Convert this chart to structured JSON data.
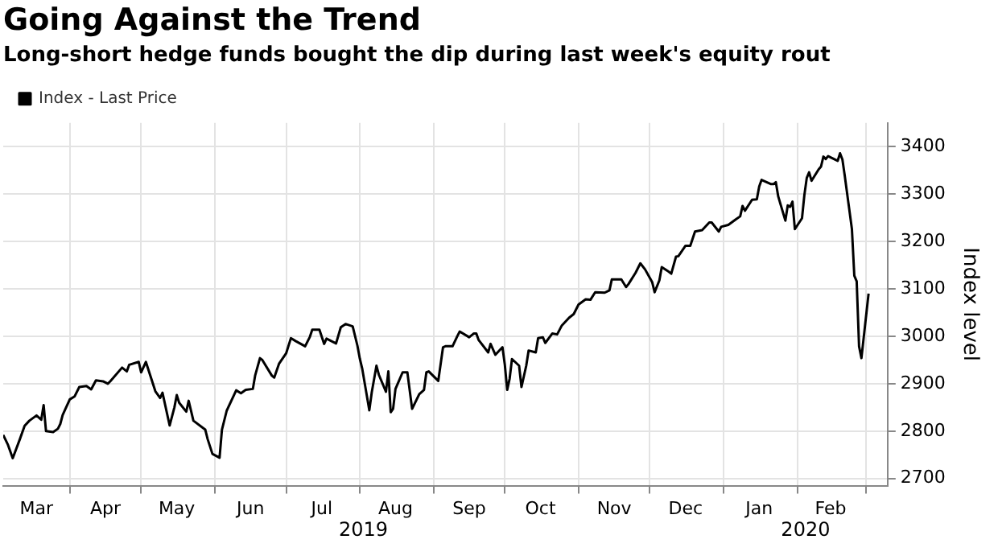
{
  "chart_data": {
    "type": "line",
    "title": "Going Against the Trend",
    "subtitle": "Long-short hedge funds bought the dip during last week's equity rout",
    "ylabel": "Index level",
    "x": [
      "2019-03-04",
      "2019-03-06",
      "2019-03-08",
      "2019-03-11",
      "2019-03-13",
      "2019-03-15",
      "2019-03-18",
      "2019-03-20",
      "2019-03-21",
      "2019-03-22",
      "2019-03-25",
      "2019-03-27",
      "2019-03-28",
      "2019-03-29",
      "2019-04-01",
      "2019-04-03",
      "2019-04-05",
      "2019-04-08",
      "2019-04-10",
      "2019-04-12",
      "2019-04-15",
      "2019-04-17",
      "2019-04-18",
      "2019-04-23",
      "2019-04-25",
      "2019-04-26",
      "2019-04-30",
      "2019-05-01",
      "2019-05-03",
      "2019-05-07",
      "2019-05-09",
      "2019-05-10",
      "2019-05-13",
      "2019-05-15",
      "2019-05-16",
      "2019-05-17",
      "2019-05-20",
      "2019-05-21",
      "2019-05-23",
      "2019-05-28",
      "2019-05-29",
      "2019-05-31",
      "2019-06-03",
      "2019-06-04",
      "2019-06-06",
      "2019-06-10",
      "2019-06-12",
      "2019-06-14",
      "2019-06-17",
      "2019-06-18",
      "2019-06-20",
      "2019-06-21",
      "2019-06-25",
      "2019-06-26",
      "2019-06-28",
      "2019-07-01",
      "2019-07-03",
      "2019-07-05",
      "2019-07-09",
      "2019-07-11",
      "2019-07-12",
      "2019-07-15",
      "2019-07-17",
      "2019-07-18",
      "2019-07-22",
      "2019-07-24",
      "2019-07-26",
      "2019-07-29",
      "2019-07-31",
      "2019-08-01",
      "2019-08-02",
      "2019-08-05",
      "2019-08-06",
      "2019-08-08",
      "2019-08-09",
      "2019-08-12",
      "2019-08-13",
      "2019-08-14",
      "2019-08-15",
      "2019-08-16",
      "2019-08-19",
      "2019-08-21",
      "2019-08-23",
      "2019-08-26",
      "2019-08-28",
      "2019-08-29",
      "2019-08-30",
      "2019-09-03",
      "2019-09-05",
      "2019-09-06",
      "2019-09-09",
      "2019-09-11",
      "2019-09-12",
      "2019-09-16",
      "2019-09-18",
      "2019-09-19",
      "2019-09-20",
      "2019-09-24",
      "2019-09-25",
      "2019-09-27",
      "2019-09-30",
      "2019-10-01",
      "2019-10-02",
      "2019-10-03",
      "2019-10-04",
      "2019-10-07",
      "2019-10-08",
      "2019-10-10",
      "2019-10-11",
      "2019-10-14",
      "2019-10-15",
      "2019-10-17",
      "2019-10-18",
      "2019-10-21",
      "2019-10-23",
      "2019-10-25",
      "2019-10-28",
      "2019-10-30",
      "2019-11-01",
      "2019-11-04",
      "2019-11-06",
      "2019-11-08",
      "2019-11-12",
      "2019-11-14",
      "2019-11-15",
      "2019-11-19",
      "2019-11-21",
      "2019-11-22",
      "2019-11-25",
      "2019-11-27",
      "2019-11-29",
      "2019-12-02",
      "2019-12-03",
      "2019-12-05",
      "2019-12-06",
      "2019-12-09",
      "2019-12-10",
      "2019-12-12",
      "2019-12-13",
      "2019-12-16",
      "2019-12-18",
      "2019-12-20",
      "2019-12-23",
      "2019-12-26",
      "2019-12-27",
      "2019-12-30",
      "2019-12-31",
      "2020-01-03",
      "2020-01-06",
      "2020-01-08",
      "2020-01-09",
      "2020-01-10",
      "2020-01-13",
      "2020-01-15",
      "2020-01-16",
      "2020-01-17",
      "2020-01-21",
      "2020-01-22",
      "2020-01-23",
      "2020-01-24",
      "2020-01-27",
      "2020-01-28",
      "2020-01-29",
      "2020-01-30",
      "2020-01-31",
      "2020-02-03",
      "2020-02-04",
      "2020-02-05",
      "2020-02-06",
      "2020-02-07",
      "2020-02-10",
      "2020-02-11",
      "2020-02-12",
      "2020-02-13",
      "2020-02-14",
      "2020-02-18",
      "2020-02-19",
      "2020-02-20",
      "2020-02-21",
      "2020-02-24",
      "2020-02-25",
      "2020-02-26",
      "2020-02-27",
      "2020-02-28",
      "2020-03-02"
    ],
    "series": [
      {
        "name": "Index - Last Price",
        "color": "#000000",
        "values": [
          2792,
          2771,
          2743,
          2783,
          2811,
          2822,
          2833,
          2824,
          2855,
          2800,
          2798,
          2805,
          2815,
          2834,
          2867,
          2873,
          2893,
          2895,
          2888,
          2907,
          2905,
          2900,
          2905,
          2934,
          2926,
          2940,
          2946,
          2924,
          2946,
          2884,
          2870,
          2881,
          2812,
          2850,
          2876,
          2860,
          2841,
          2864,
          2822,
          2803,
          2783,
          2752,
          2744,
          2803,
          2843,
          2886,
          2880,
          2887,
          2889,
          2918,
          2954,
          2950,
          2917,
          2913,
          2942,
          2964,
          2996,
          2990,
          2979,
          2999,
          3014,
          3014,
          2984,
          2995,
          2985,
          3019,
          3026,
          3021,
          2980,
          2953,
          2932,
          2844,
          2881,
          2938,
          2919,
          2883,
          2926,
          2840,
          2847,
          2889,
          2924,
          2924,
          2847,
          2878,
          2887,
          2924,
          2926,
          2906,
          2977,
          2979,
          2979,
          3000,
          3010,
          2998,
          3006,
          3006,
          2992,
          2966,
          2984,
          2961,
          2977,
          2940,
          2887,
          2910,
          2952,
          2938,
          2893,
          2938,
          2970,
          2966,
          2996,
          2998,
          2986,
          3006,
          3004,
          3023,
          3039,
          3047,
          3067,
          3078,
          3077,
          3093,
          3092,
          3097,
          3120,
          3120,
          3104,
          3110,
          3134,
          3154,
          3141,
          3114,
          3093,
          3118,
          3146,
          3136,
          3132,
          3168,
          3169,
          3191,
          3191,
          3221,
          3224,
          3240,
          3240,
          3221,
          3231,
          3235,
          3246,
          3253,
          3275,
          3265,
          3288,
          3289,
          3316,
          3330,
          3321,
          3321,
          3325,
          3295,
          3244,
          3276,
          3273,
          3284,
          3226,
          3249,
          3298,
          3334,
          3346,
          3328,
          3352,
          3358,
          3379,
          3374,
          3380,
          3370,
          3386,
          3373,
          3338,
          3226,
          3128,
          3116,
          2979,
          2954,
          3090
        ]
      }
    ],
    "xlim": [
      "2019-03-04",
      "2020-03-10"
    ],
    "xticks": [
      {
        "value": "2019-03-18",
        "label": "Mar"
      },
      {
        "value": "2019-04-01",
        "label": null
      },
      {
        "value": "2019-04-16",
        "label": "Apr"
      },
      {
        "value": "2019-05-01",
        "label": null
      },
      {
        "value": "2019-05-16",
        "label": "May"
      },
      {
        "value": "2019-06-01",
        "label": null
      },
      {
        "value": "2019-06-16",
        "label": "Jun"
      },
      {
        "value": "2019-07-01",
        "label": null
      },
      {
        "value": "2019-07-16",
        "label": "Jul"
      },
      {
        "value": "2019-08-01",
        "label": null
      },
      {
        "value": "2019-08-16",
        "label": "Aug"
      },
      {
        "value": "2019-09-01",
        "label": null
      },
      {
        "value": "2019-09-16",
        "label": "Sep"
      },
      {
        "value": "2019-10-01",
        "label": null
      },
      {
        "value": "2019-10-16",
        "label": "Oct"
      },
      {
        "value": "2019-11-01",
        "label": null
      },
      {
        "value": "2019-11-16",
        "label": "Nov"
      },
      {
        "value": "2019-12-01",
        "label": null
      },
      {
        "value": "2019-12-16",
        "label": "Dec"
      },
      {
        "value": "2020-01-01",
        "label": null
      },
      {
        "value": "2020-01-16",
        "label": "Jan"
      },
      {
        "value": "2020-02-01",
        "label": null
      },
      {
        "value": "2020-02-15",
        "label": "Feb"
      },
      {
        "value": "2020-03-01",
        "label": null
      }
    ],
    "ylim": [
      2685,
      3450
    ],
    "yticks": [
      2700,
      2800,
      2900,
      3000,
      3100,
      3200,
      3300,
      3400
    ],
    "annotations": [
      "2019",
      "2020"
    ],
    "grid": true,
    "legend": "top left",
    "marker": "none",
    "line_style": "solid"
  }
}
